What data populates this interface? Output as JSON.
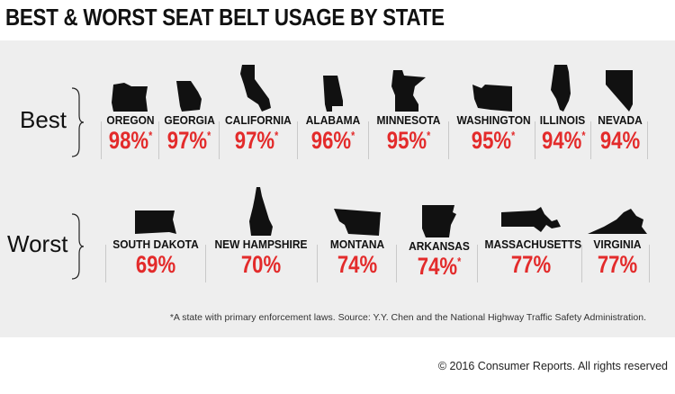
{
  "title": "BEST & WORST SEAT BELT USAGE BY STATE",
  "best": {
    "label": "Best",
    "states": [
      {
        "name": "OREGON",
        "pct": "98%",
        "star": "*",
        "icon": "oregon-shape"
      },
      {
        "name": "GEORGIA",
        "pct": "97%",
        "star": "*",
        "icon": "georgia-shape"
      },
      {
        "name": "CALIFORNIA",
        "pct": "97%",
        "star": "*",
        "icon": "california-shape"
      },
      {
        "name": "ALABAMA",
        "pct": "96%",
        "star": "*",
        "icon": "alabama-shape"
      },
      {
        "name": "MINNESOTA",
        "pct": "95%",
        "star": "*",
        "icon": "minnesota-shape"
      },
      {
        "name": "WASHINGTON",
        "pct": "95%",
        "star": "*",
        "icon": "washington-shape"
      },
      {
        "name": "ILLINOIS",
        "pct": "94%",
        "star": "*",
        "icon": "illinois-shape"
      },
      {
        "name": "NEVADA",
        "pct": "94%",
        "star": "",
        "icon": "nevada-shape"
      }
    ]
  },
  "worst": {
    "label": "Worst",
    "states": [
      {
        "name": "SOUTH DAKOTA",
        "pct": "69%",
        "star": "",
        "icon": "south-dakota-shape"
      },
      {
        "name": "NEW HAMPSHIRE",
        "pct": "70%",
        "star": "",
        "icon": "new-hampshire-shape"
      },
      {
        "name": "MONTANA",
        "pct": "74%",
        "star": "",
        "icon": "montana-shape"
      },
      {
        "name": "ARKANSAS",
        "pct": "74%",
        "star": "*",
        "icon": "arkansas-shape"
      },
      {
        "name": "MASSACHUSETTS",
        "pct": "77%",
        "star": "",
        "icon": "massachusetts-shape"
      },
      {
        "name": "VIRGINIA",
        "pct": "77%",
        "star": "",
        "icon": "virginia-shape"
      }
    ]
  },
  "footnote": "*A state with primary enforcement laws. Source: Y.Y. Chen and the National Highway Traffic Safety Administration.",
  "copyright": "© 2016 Consumer Reports. All rights reserved",
  "colors": {
    "percent": "#e32b2b",
    "panel": "#eeeeee",
    "shape": "#111111"
  }
}
